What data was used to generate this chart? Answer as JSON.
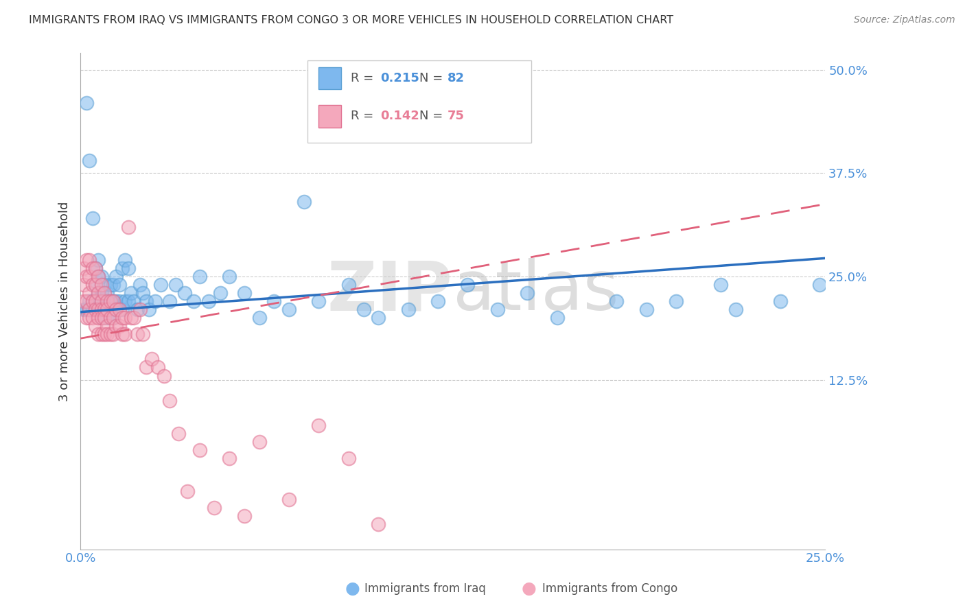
{
  "title": "IMMIGRANTS FROM IRAQ VS IMMIGRANTS FROM CONGO 3 OR MORE VEHICLES IN HOUSEHOLD CORRELATION CHART",
  "source": "Source: ZipAtlas.com",
  "ylabel": "3 or more Vehicles in Household",
  "watermark": "ZIPatlas",
  "xlim": [
    0.0,
    0.25
  ],
  "ylim": [
    -0.08,
    0.52
  ],
  "iraq_R": 0.215,
  "iraq_N": 82,
  "congo_R": 0.142,
  "congo_N": 75,
  "iraq_color": "#7EB8EE",
  "iraq_edge_color": "#5A9FD4",
  "congo_color": "#F4A8BC",
  "congo_edge_color": "#E07090",
  "iraq_line_color": "#2B6FBF",
  "congo_line_color": "#E0607A",
  "legend_iraq_label": "Immigrants from Iraq",
  "legend_congo_label": "Immigrants from Congo",
  "grid_color": "#CCCCCC",
  "yticks_right": [
    0.0,
    0.125,
    0.25,
    0.375,
    0.5
  ],
  "ytick_labels_right": [
    "",
    "12.5%",
    "25.0%",
    "37.5%",
    "50.0%"
  ],
  "iraq_x": [
    0.001,
    0.002,
    0.002,
    0.003,
    0.003,
    0.003,
    0.004,
    0.004,
    0.004,
    0.005,
    0.005,
    0.005,
    0.005,
    0.006,
    0.006,
    0.006,
    0.006,
    0.007,
    0.007,
    0.007,
    0.007,
    0.008,
    0.008,
    0.008,
    0.009,
    0.009,
    0.009,
    0.01,
    0.01,
    0.01,
    0.011,
    0.011,
    0.011,
    0.012,
    0.012,
    0.013,
    0.013,
    0.014,
    0.014,
    0.015,
    0.015,
    0.016,
    0.016,
    0.017,
    0.018,
    0.019,
    0.02,
    0.021,
    0.022,
    0.023,
    0.025,
    0.027,
    0.03,
    0.032,
    0.035,
    0.038,
    0.04,
    0.043,
    0.047,
    0.05,
    0.055,
    0.06,
    0.065,
    0.07,
    0.075,
    0.08,
    0.09,
    0.095,
    0.1,
    0.11,
    0.12,
    0.13,
    0.14,
    0.15,
    0.16,
    0.18,
    0.19,
    0.2,
    0.215,
    0.22,
    0.235,
    0.248
  ],
  "iraq_y": [
    0.21,
    0.46,
    0.21,
    0.39,
    0.22,
    0.21,
    0.32,
    0.22,
    0.21,
    0.26,
    0.24,
    0.22,
    0.21,
    0.27,
    0.25,
    0.23,
    0.21,
    0.25,
    0.23,
    0.22,
    0.2,
    0.24,
    0.22,
    0.21,
    0.23,
    0.21,
    0.2,
    0.24,
    0.22,
    0.21,
    0.24,
    0.22,
    0.2,
    0.25,
    0.22,
    0.24,
    0.22,
    0.26,
    0.21,
    0.27,
    0.22,
    0.26,
    0.22,
    0.23,
    0.22,
    0.21,
    0.24,
    0.23,
    0.22,
    0.21,
    0.22,
    0.24,
    0.22,
    0.24,
    0.23,
    0.22,
    0.25,
    0.22,
    0.23,
    0.25,
    0.23,
    0.2,
    0.22,
    0.21,
    0.34,
    0.22,
    0.24,
    0.21,
    0.2,
    0.21,
    0.22,
    0.24,
    0.21,
    0.23,
    0.2,
    0.22,
    0.21,
    0.22,
    0.24,
    0.21,
    0.22,
    0.24
  ],
  "congo_x": [
    0.001,
    0.001,
    0.001,
    0.002,
    0.002,
    0.002,
    0.002,
    0.003,
    0.003,
    0.003,
    0.003,
    0.003,
    0.004,
    0.004,
    0.004,
    0.004,
    0.005,
    0.005,
    0.005,
    0.005,
    0.005,
    0.006,
    0.006,
    0.006,
    0.006,
    0.006,
    0.007,
    0.007,
    0.007,
    0.007,
    0.007,
    0.008,
    0.008,
    0.008,
    0.008,
    0.009,
    0.009,
    0.009,
    0.009,
    0.01,
    0.01,
    0.01,
    0.011,
    0.011,
    0.011,
    0.012,
    0.012,
    0.013,
    0.013,
    0.014,
    0.014,
    0.015,
    0.015,
    0.016,
    0.017,
    0.018,
    0.019,
    0.02,
    0.021,
    0.022,
    0.024,
    0.026,
    0.028,
    0.03,
    0.033,
    0.036,
    0.04,
    0.045,
    0.05,
    0.055,
    0.06,
    0.07,
    0.08,
    0.09,
    0.1
  ],
  "congo_y": [
    0.26,
    0.24,
    0.22,
    0.27,
    0.25,
    0.22,
    0.2,
    0.27,
    0.25,
    0.23,
    0.21,
    0.2,
    0.26,
    0.24,
    0.22,
    0.2,
    0.26,
    0.24,
    0.22,
    0.21,
    0.19,
    0.25,
    0.23,
    0.21,
    0.2,
    0.18,
    0.24,
    0.22,
    0.21,
    0.2,
    0.18,
    0.23,
    0.21,
    0.2,
    0.18,
    0.22,
    0.21,
    0.19,
    0.18,
    0.22,
    0.2,
    0.18,
    0.22,
    0.2,
    0.18,
    0.21,
    0.19,
    0.21,
    0.19,
    0.2,
    0.18,
    0.2,
    0.18,
    0.31,
    0.2,
    0.2,
    0.18,
    0.21,
    0.18,
    0.14,
    0.15,
    0.14,
    0.13,
    0.1,
    0.06,
    -0.01,
    0.04,
    -0.03,
    0.03,
    -0.04,
    0.05,
    -0.02,
    0.07,
    0.03,
    -0.05
  ]
}
